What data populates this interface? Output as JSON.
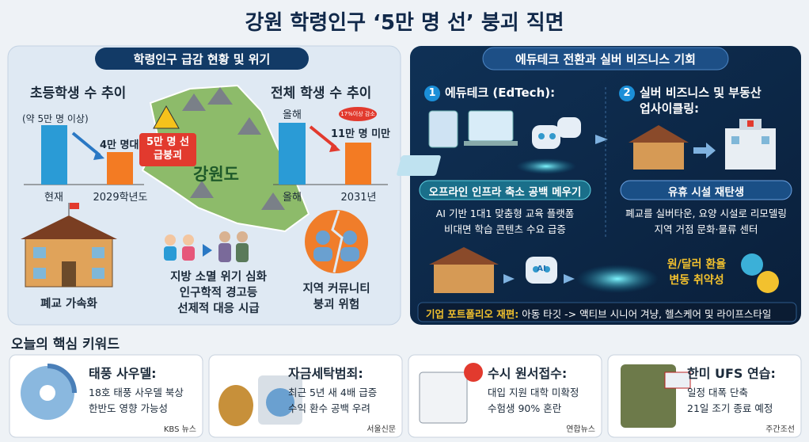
{
  "header": {
    "title": "강원 학령인구 ‘5만 명 선’ 붕괴 직면"
  },
  "left_panel": {
    "heading": "학령인구 급감 현황 및 위기",
    "chart1": {
      "title": "초등학생 수 추이",
      "note": "(약 5만 명 이상)",
      "bar_label": "4만 명대",
      "categories": [
        "현재",
        "2029학년도"
      ]
    },
    "warning": [
      "5만 명 선",
      "급붕괴"
    ],
    "map_label": "강원도",
    "chart2": {
      "title": "전체 학생 수 추이",
      "top_label": "올해",
      "bar_label": "11만 명 미만",
      "badge": "17%이상 감소",
      "categories": [
        "올해",
        "2031년"
      ]
    },
    "items": [
      [
        "폐교 가속화"
      ],
      [
        "지방 소멸 위기 심화",
        "인구학적 경고등",
        "선제적 대응 시급"
      ],
      [
        "지역 커뮤니티",
        "붕괴 위험"
      ]
    ]
  },
  "right_panel": {
    "heading": "에듀테크 전환과 실버 비즈니스 기회",
    "sections": [
      {
        "number": "1",
        "title": [
          "에듀테크 (EdTech):"
        ],
        "banner": "오프라인 인프라 축소 공백 메우기",
        "lines": [
          "AI 기반 1대1 맞춤형 교육 플랫폼",
          "비대면 학습 콘텐츠 수요 급증"
        ]
      },
      {
        "number": "2",
        "title": [
          "실버 비즈니스 및 부동산",
          "업사이클링:"
        ],
        "banner": "유휴 시설 재탄생",
        "lines": [
          "폐교를 실버타운, 요양 시설로 리모델링",
          "지역 거점 문화·물류 센터"
        ]
      }
    ],
    "robot_label": "AI",
    "risk": [
      "원/달러 환율",
      "변동 취약성"
    ],
    "portfolio": {
      "label": "기업 포트폴리오 재편:",
      "text": "아동 타깃 -> 액티브 시니어 겨냥, 헬스케어 및 라이프스타일"
    }
  },
  "keywords": {
    "heading": "오늘의 핵심 키워드",
    "cards": [
      {
        "title": "태풍 사우델:",
        "lines": [
          "18호 태풍 사우델 북상",
          "한반도 영향 가능성"
        ],
        "source": "KBS 뉴스"
      },
      {
        "title": "자금세탁범죄:",
        "lines": [
          "최근 5년 새 4배 급증",
          "수익 환수 공백 우려"
        ],
        "source": "서울신문"
      },
      {
        "title": "수시 원서접수:",
        "lines": [
          "대입 지원 대학 미확정",
          "수험생 90% 혼란"
        ],
        "source": "연합뉴스"
      },
      {
        "title": "한미 UFS 연습:",
        "lines": [
          "일정 대폭 단축",
          "21일 조기 종료 예정"
        ],
        "source": "주간조선"
      }
    ]
  }
}
